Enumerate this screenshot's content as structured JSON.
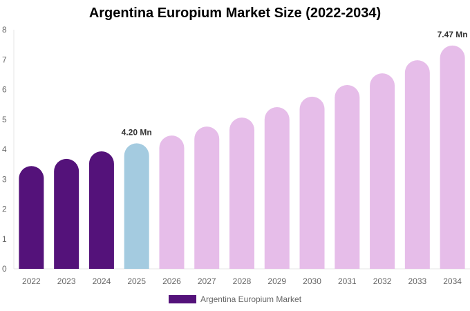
{
  "chart_data": {
    "type": "bar",
    "title": "Argentina Europium Market Size (2022-2034)",
    "categories": [
      "2022",
      "2023",
      "2024",
      "2025",
      "2026",
      "2027",
      "2028",
      "2029",
      "2030",
      "2031",
      "2032",
      "2033",
      "2034"
    ],
    "series": [
      {
        "name": "Argentina Europium Market",
        "values": [
          3.44,
          3.68,
          3.93,
          4.2,
          4.46,
          4.76,
          5.06,
          5.41,
          5.76,
          6.15,
          6.54,
          6.98,
          7.47
        ]
      }
    ],
    "data_labels": [
      {
        "category": "2025",
        "text": "4.20 Mn"
      },
      {
        "category": "2034",
        "text": "7.47 Mn"
      }
    ],
    "ylim": [
      0,
      8
    ],
    "yticks": [
      0,
      1,
      2,
      3,
      4,
      5,
      6,
      7,
      8
    ],
    "grid": false,
    "legend": "bottom",
    "colors": {
      "historical": "#54127a",
      "current": "#a4cbe0",
      "forecast": "#e6bde9"
    }
  }
}
